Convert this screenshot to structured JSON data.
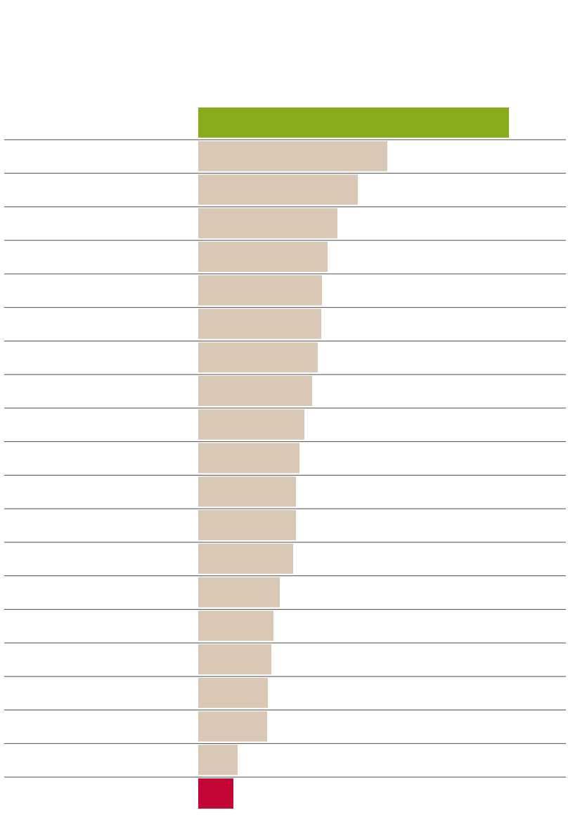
{
  "chart_data": {
    "type": "bar",
    "orientation": "horizontal",
    "title": "",
    "xlabel": "",
    "ylabel": "",
    "categories": [
      "",
      "",
      "",
      "",
      "",
      "",
      "",
      "",
      "",
      "",
      "",
      "",
      "",
      "",
      "",
      "",
      "",
      "",
      "",
      "",
      ""
    ],
    "values": [
      442,
      269,
      227,
      198,
      184,
      176,
      175,
      170,
      162,
      151,
      144,
      139,
      139,
      135,
      116,
      107,
      104,
      99,
      98,
      56,
      50
    ],
    "xlim": [
      0,
      442
    ],
    "grid": false,
    "legend": "none",
    "colors": {
      "highlight_top": "#87AD1F",
      "default": "#D9C8B5",
      "highlight_bottom": "#C40636",
      "separator": "#4D4D4D"
    }
  }
}
